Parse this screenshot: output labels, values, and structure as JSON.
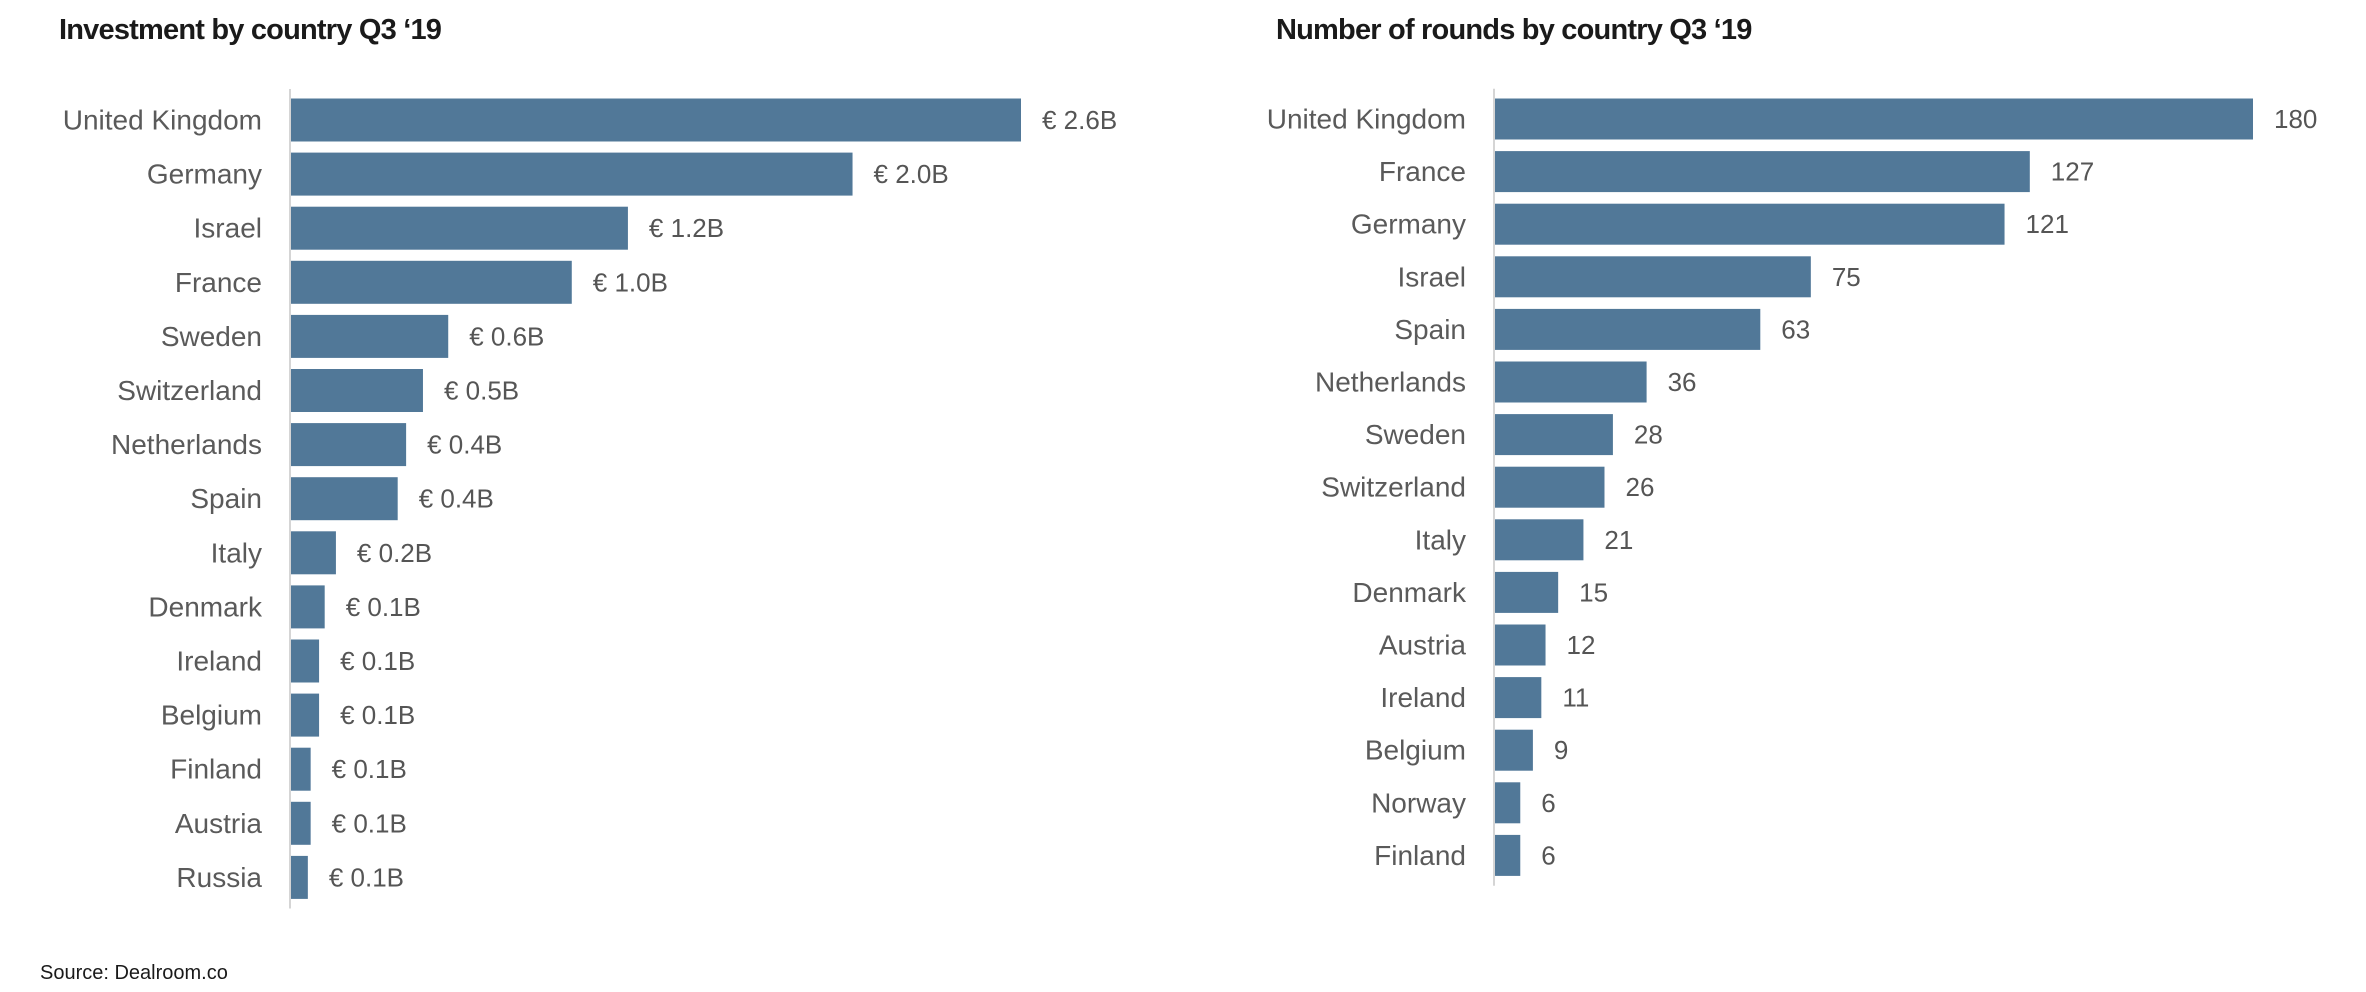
{
  "source": "Source: Dealroom.co",
  "colors": {
    "bar": "#517898",
    "axis": "#d5d5d5",
    "category_text": "#5a5a5a",
    "value_text": "#555555"
  },
  "chart_data": [
    {
      "type": "bar",
      "orientation": "horizontal",
      "title": "Investment by country Q3 ‘19",
      "xlabel": "",
      "ylabel": "",
      "unit": "€ B",
      "value_prefix": "€ ",
      "value_suffix": "B",
      "value_decimals": 1,
      "grid": false,
      "categories": [
        "United Kingdom",
        "Germany",
        "Israel",
        "France",
        "Sweden",
        "Switzerland",
        "Netherlands",
        "Spain",
        "Italy",
        "Denmark",
        "Ireland",
        "Belgium",
        "Finland",
        "Austria",
        "Russia"
      ],
      "values": [
        2.6,
        2.0,
        1.2,
        1.0,
        0.6,
        0.5,
        0.4,
        0.4,
        0.2,
        0.1,
        0.1,
        0.1,
        0.1,
        0.1,
        0.1
      ],
      "bar_values_estimated": [
        2.6,
        2.0,
        1.2,
        1.0,
        0.56,
        0.47,
        0.41,
        0.38,
        0.16,
        0.12,
        0.1,
        0.1,
        0.07,
        0.07,
        0.06
      ],
      "xlim": [
        0,
        2.6
      ]
    },
    {
      "type": "bar",
      "orientation": "horizontal",
      "title": "Number of rounds by country Q3 ‘19",
      "xlabel": "",
      "ylabel": "",
      "value_prefix": "",
      "value_suffix": "",
      "value_decimals": 0,
      "grid": false,
      "categories": [
        "United Kingdom",
        "France",
        "Germany",
        "Israel",
        "Spain",
        "Netherlands",
        "Sweden",
        "Switzerland",
        "Italy",
        "Denmark",
        "Austria",
        "Ireland",
        "Belgium",
        "Norway",
        "Finland"
      ],
      "values": [
        180,
        127,
        121,
        75,
        63,
        36,
        28,
        26,
        21,
        15,
        12,
        11,
        9,
        6,
        6
      ],
      "xlim": [
        0,
        180
      ]
    }
  ]
}
